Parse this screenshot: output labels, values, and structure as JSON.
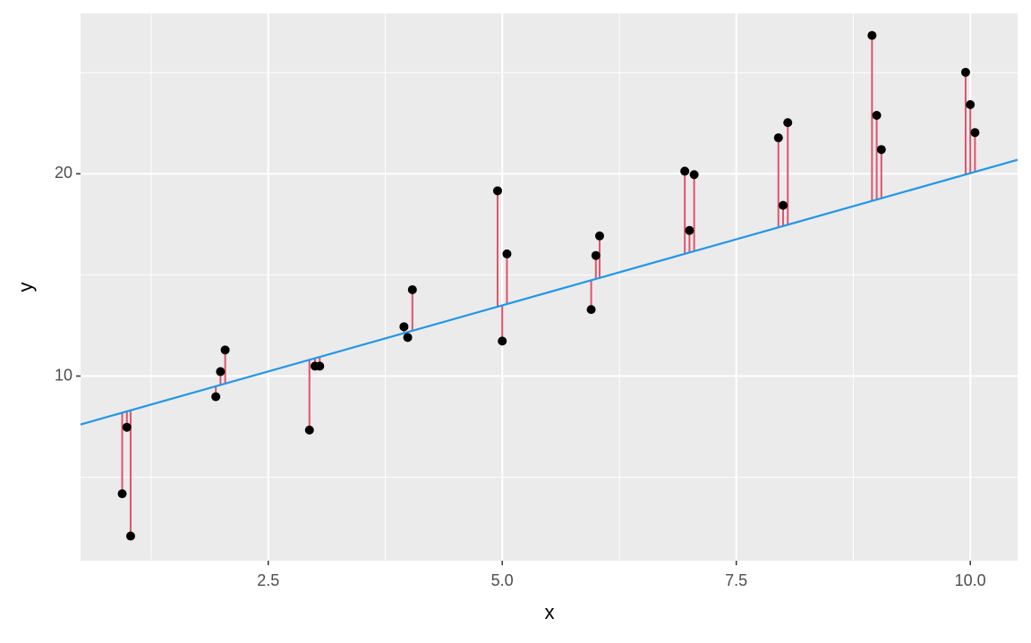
{
  "chart_data": {
    "type": "scatter",
    "xlabel": "x",
    "ylabel": "y",
    "x": [
      0.94,
      0.99,
      1.03,
      1.94,
      1.99,
      2.04,
      2.94,
      3.0,
      3.05,
      3.95,
      3.99,
      4.04,
      4.95,
      5.0,
      5.05,
      5.95,
      6.0,
      6.04,
      6.95,
      7.0,
      7.05,
      7.95,
      8.0,
      8.05,
      8.95,
      9.0,
      9.05,
      9.95,
      10.0,
      10.05
    ],
    "y": [
      4.18,
      7.47,
      2.09,
      8.98,
      10.22,
      11.29,
      7.33,
      10.49,
      10.49,
      12.44,
      11.91,
      14.27,
      19.16,
      11.73,
      16.04,
      13.29,
      15.96,
      16.93,
      20.13,
      17.2,
      19.96,
      21.78,
      18.44,
      22.53,
      26.84,
      22.89,
      21.2,
      25.02,
      23.42,
      22.04
    ],
    "point_color": "#000000",
    "fit": {
      "intercept": 6.96,
      "slope": 1.307,
      "color": "#2297E6"
    },
    "residual_color": "#DF536B",
    "xlim": [
      0.495,
      10.505
    ],
    "ylim": [
      0.87,
      27.93
    ],
    "xticks": [
      2.5,
      {
        "value": 5,
        "label": "5.0"
      },
      7.5,
      {
        "value": 10,
        "label": "10.0"
      }
    ],
    "yticks": [
      10,
      20
    ],
    "xminor_ticks": [
      1.25,
      3.75,
      6.25,
      8.75
    ],
    "yminor_ticks": [
      5,
      15,
      25
    ],
    "grid": true
  }
}
